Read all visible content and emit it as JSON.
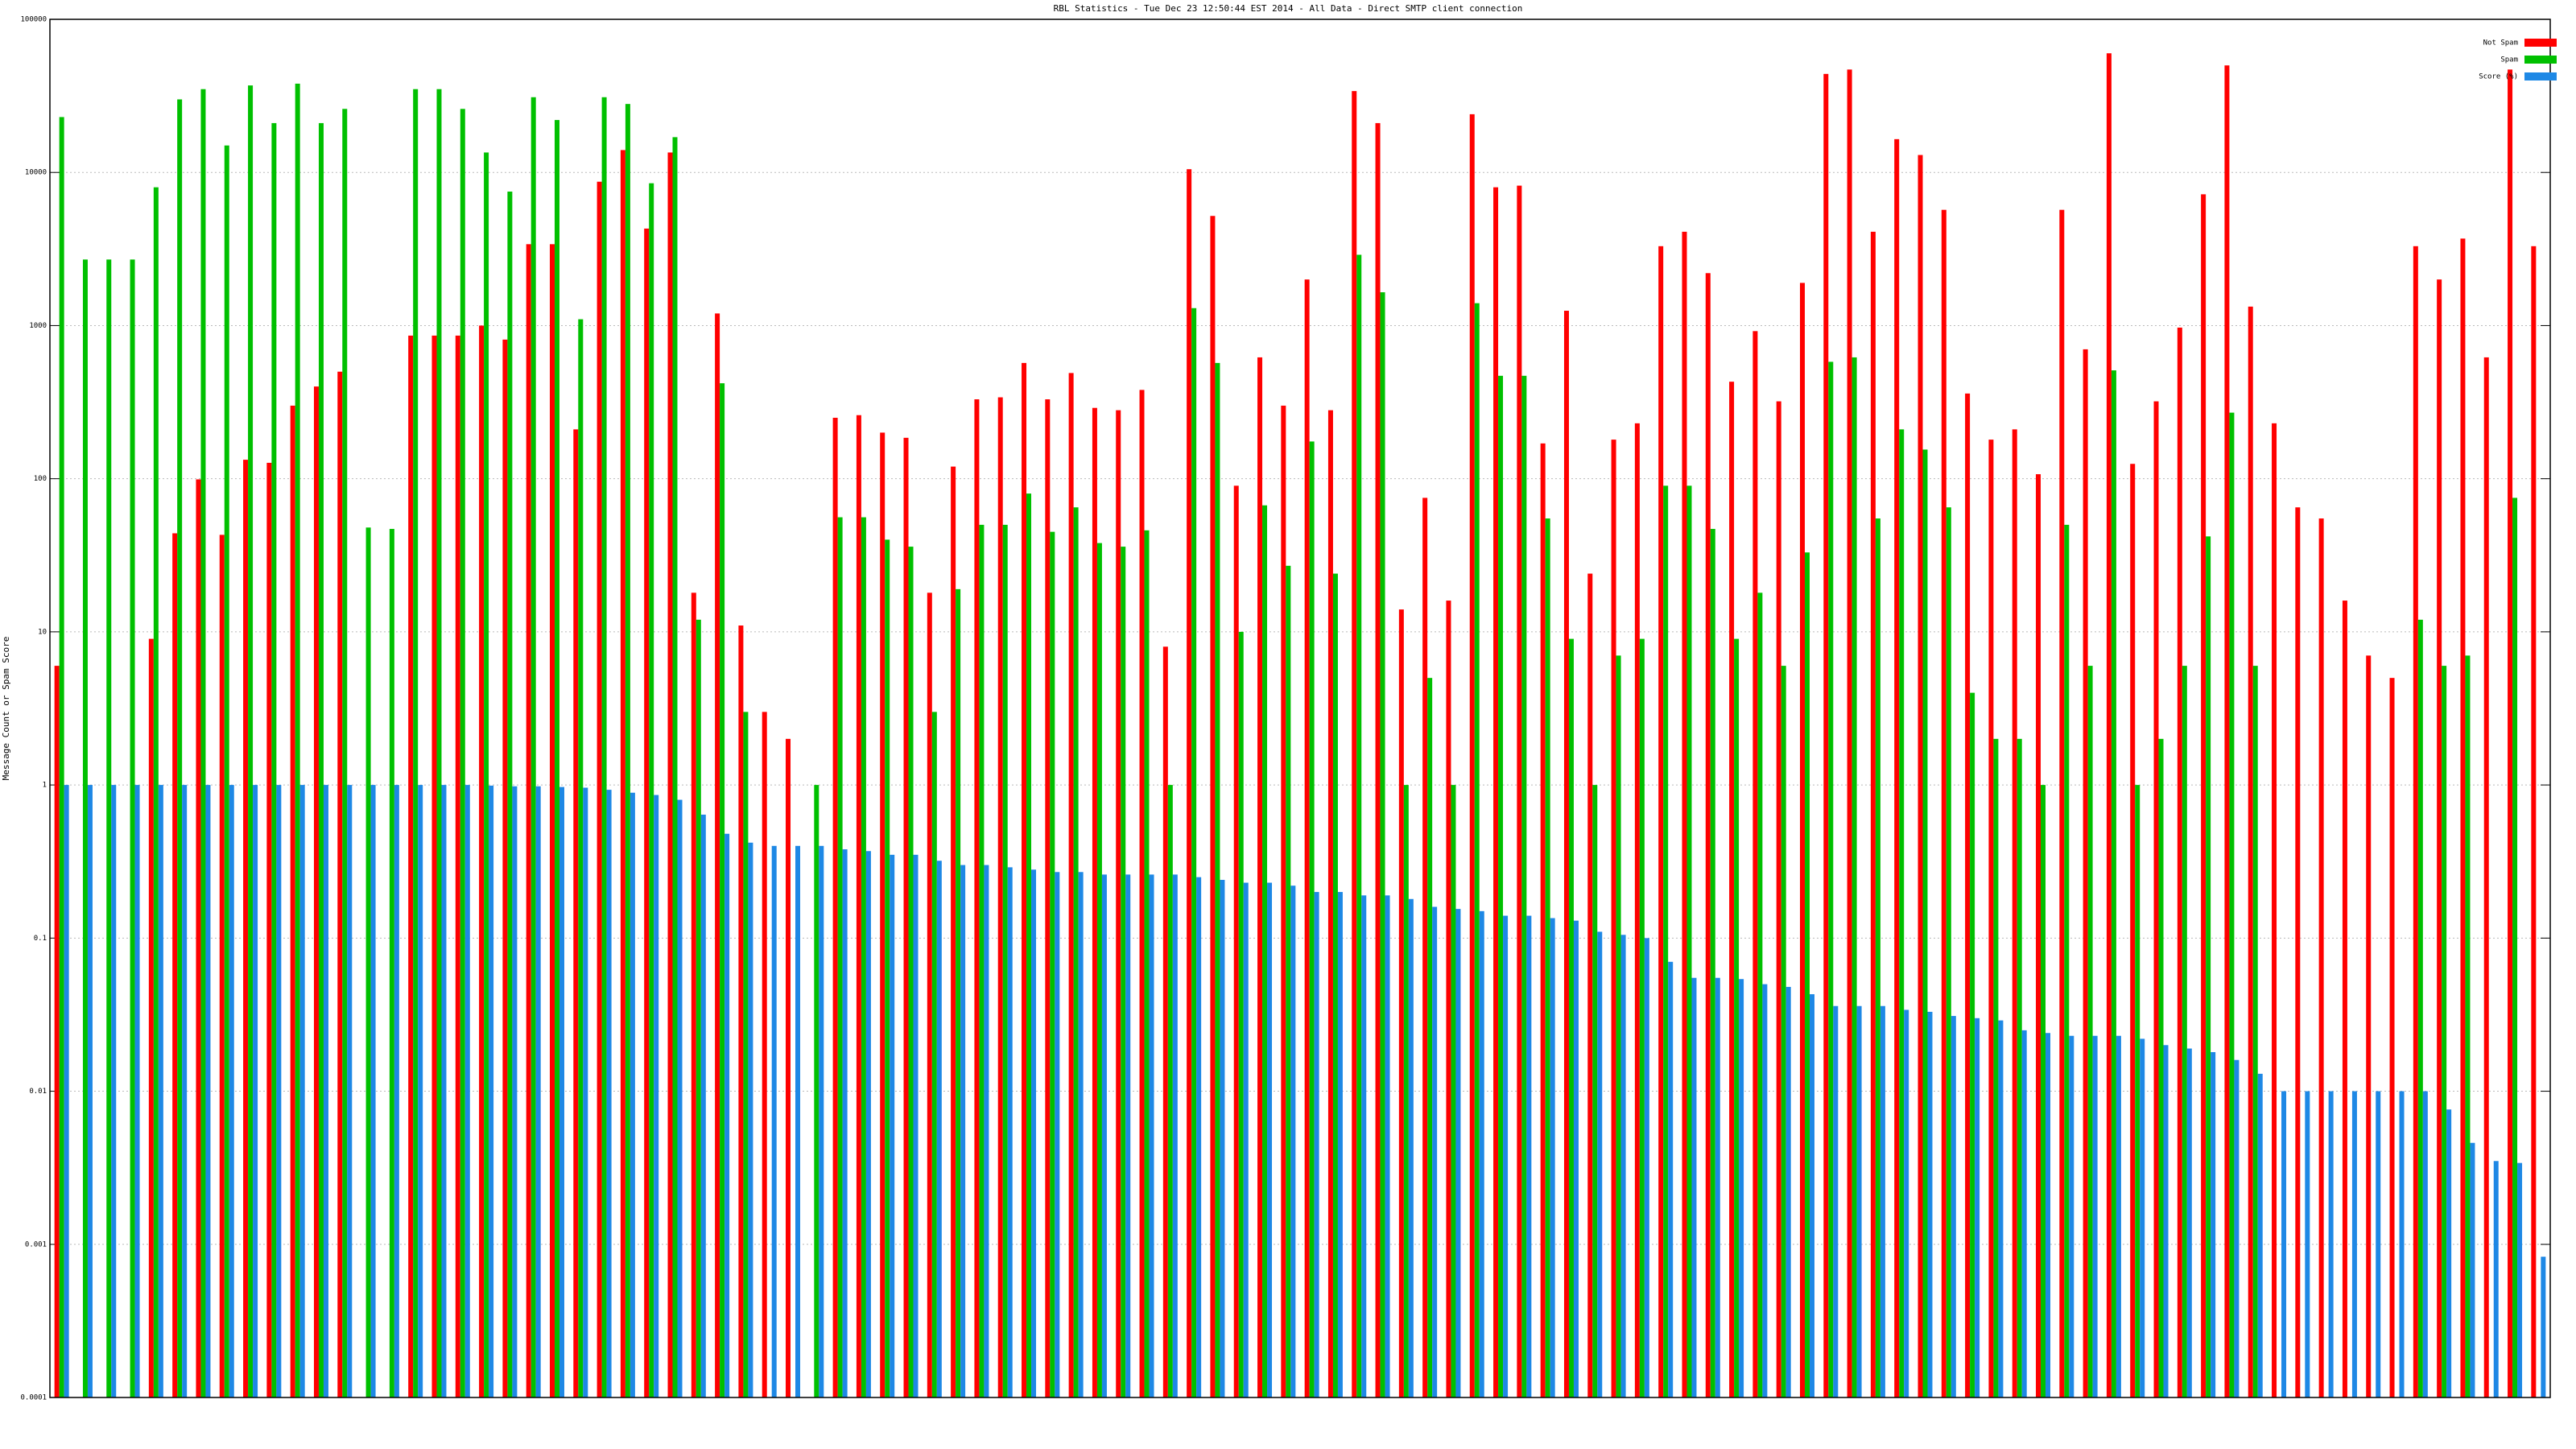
{
  "chart_data": {
    "type": "bar",
    "title": "RBL Statistics - Tue Dec 23 12:50:44 EST 2014 - All Data - Direct SMTP client connection",
    "y_label": "Message Count or Spam Score",
    "yscale": "log",
    "grid": true,
    "legend": "top-right",
    "ylim": [
      0.0001,
      100000
    ],
    "yticks": [
      0.0001,
      0.001,
      0.01,
      0.1,
      1,
      10,
      100,
      1000,
      10000,
      100000
    ],
    "categories": [
      null,
      null,
      null,
      null,
      null,
      null,
      null,
      null,
      null,
      null,
      null,
      null,
      null,
      null,
      null,
      null,
      null,
      null,
      null,
      null,
      null,
      null,
      null,
      null,
      null,
      null,
      null,
      null,
      null,
      null,
      null,
      null,
      null,
      null,
      null,
      null,
      null,
      null,
      null,
      null,
      null,
      null,
      null,
      null,
      null,
      null,
      null,
      null,
      null,
      null,
      null,
      null,
      null,
      null,
      null,
      null,
      null,
      null,
      null,
      null,
      null,
      null,
      null,
      null,
      null,
      null,
      null,
      null,
      null,
      null,
      null,
      null,
      null,
      null,
      null,
      null,
      null,
      null,
      null,
      null,
      null,
      null,
      null,
      null,
      null,
      null,
      null,
      null,
      null,
      null,
      null,
      null,
      null,
      null,
      null,
      null,
      null,
      null,
      null,
      null,
      null,
      null,
      null,
      null,
      null,
      null
    ],
    "series": [
      {
        "name": "Not Spam",
        "color": "#ff0000",
        "values": [
          6,
          null,
          null,
          null,
          9,
          44,
          99,
          43,
          133,
          127,
          300,
          400,
          500,
          null,
          null,
          860,
          860,
          860,
          1000,
          810,
          3400,
          3400,
          210,
          8700,
          14000,
          4300,
          13500,
          18,
          1200,
          11,
          3,
          2,
          null,
          250,
          260,
          200,
          185,
          18,
          120,
          330,
          340,
          570,
          330,
          490,
          290,
          280,
          380,
          8,
          10500,
          5200,
          90,
          620,
          300,
          2000,
          280,
          34000,
          21000,
          14,
          75,
          16,
          24000,
          8000,
          8200,
          170,
          1250,
          24,
          180,
          230,
          3300,
          4100,
          2200,
          430,
          920,
          320,
          1900,
          44000,
          47000,
          4100,
          16500,
          13000,
          5700,
          360,
          180,
          210,
          107,
          5700,
          700,
          60000,
          125,
          320,
          970,
          7200,
          50000,
          1330,
          230,
          65,
          55,
          16,
          7,
          5,
          3300,
          2000,
          3700,
          620,
          47000,
          3300
        ]
      },
      {
        "name": "Spam",
        "color": "#00c000",
        "values": [
          23000,
          2700,
          2700,
          2700,
          8000,
          30000,
          35000,
          15000,
          37000,
          21000,
          38000,
          21000,
          26000,
          48,
          47,
          35000,
          35000,
          26000,
          13500,
          7500,
          31000,
          22000,
          1100,
          31000,
          28000,
          8500,
          17000,
          12,
          420,
          3,
          null,
          null,
          1,
          56,
          56,
          40,
          36,
          3,
          19,
          50,
          50,
          80,
          45,
          65,
          38,
          36,
          46,
          1,
          1300,
          570,
          10,
          67,
          27,
          175,
          24,
          2900,
          1650,
          1,
          5,
          1,
          1400,
          470,
          470,
          55,
          9,
          1,
          7,
          9,
          90,
          90,
          47,
          9,
          18,
          6,
          33,
          580,
          620,
          55,
          210,
          155,
          65,
          4,
          2,
          2,
          1,
          50,
          6,
          510,
          1,
          2,
          6,
          42,
          270,
          6,
          null,
          null,
          null,
          null,
          null,
          null,
          12,
          6,
          7,
          null,
          75,
          null
        ]
      },
      {
        "name": "Score (%)",
        "color": "#1e88e5",
        "values": [
          1,
          1,
          1,
          1,
          1,
          1,
          1,
          1,
          1,
          1,
          1,
          1,
          1,
          1,
          1,
          1,
          1,
          1,
          0.99,
          0.98,
          0.98,
          0.97,
          0.96,
          0.93,
          0.89,
          0.86,
          0.8,
          0.64,
          0.48,
          0.42,
          0.4,
          0.4,
          0.4,
          0.38,
          0.37,
          0.35,
          0.35,
          0.32,
          0.3,
          0.3,
          0.29,
          0.28,
          0.27,
          0.27,
          0.26,
          0.26,
          0.26,
          0.26,
          0.25,
          0.24,
          0.23,
          0.23,
          0.22,
          0.2,
          0.2,
          0.19,
          0.19,
          0.18,
          0.16,
          0.155,
          0.15,
          0.14,
          0.14,
          0.135,
          0.13,
          0.11,
          0.105,
          0.1,
          0.07,
          0.055,
          0.055,
          0.054,
          0.05,
          0.048,
          0.043,
          0.036,
          0.036,
          0.036,
          0.034,
          0.033,
          0.031,
          0.03,
          0.029,
          0.025,
          0.024,
          0.023,
          0.023,
          0.023,
          0.022,
          0.02,
          0.019,
          0.018,
          0.016,
          0.013,
          0.01,
          0.01,
          0.01,
          0.01,
          0.01,
          0.01,
          0.01,
          0.0076,
          0.0046,
          0.0035,
          0.0034,
          0.00083
        ]
      }
    ]
  }
}
